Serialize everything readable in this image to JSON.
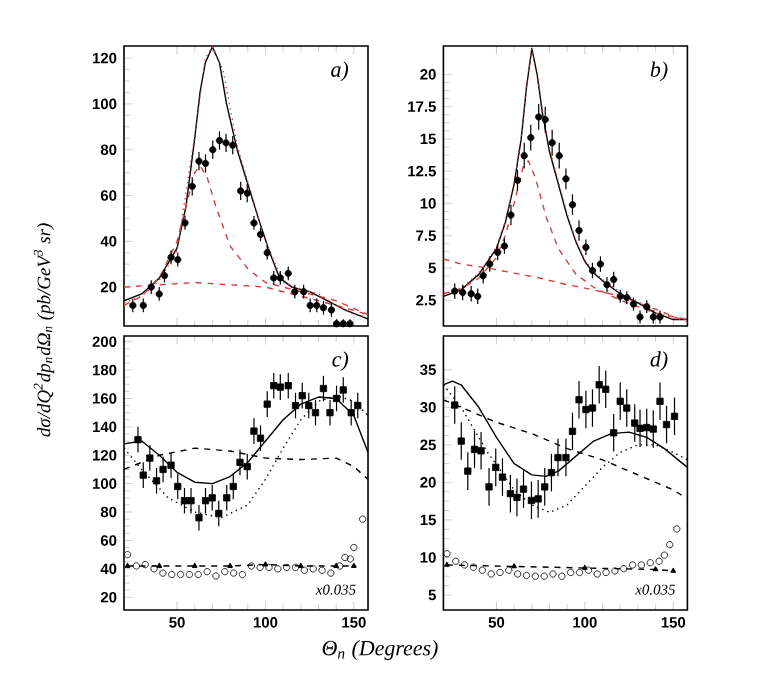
{
  "chart_data": [
    {
      "type": "scatter",
      "ylabel": "dσ/dQ$^{2}$dp$_{n}$dΩ$_{n}$ (pb/GeV$^{3}$ sr)",
      "xlim": [
        20,
        158
      ],
      "ylim": [
        3,
        125.3
      ],
      "xticks": [
        50,
        100,
        150
      ],
      "yticks": [
        20,
        40,
        60,
        80,
        100,
        120
      ],
      "tick_labels": "y",
      "annotations": [
        "a)"
      ],
      "series": [
        {
          "type": "line",
          "color": "#000000",
          "line_style": "solid",
          "x": [
            20,
            30,
            40,
            50,
            55,
            60,
            63,
            66,
            70,
            74,
            78,
            84,
            90,
            96,
            102,
            108,
            115,
            125,
            135,
            145,
            155,
            158
          ],
          "values": [
            14,
            17,
            24,
            37,
            55,
            85,
            105,
            118,
            125,
            118,
            100,
            80,
            65,
            50,
            36,
            24,
            20,
            18,
            14,
            10,
            7,
            6
          ]
        },
        {
          "type": "line",
          "color": "#d04040",
          "line_style": "dotted",
          "x": [
            20,
            30,
            40,
            50,
            60,
            66,
            70,
            76,
            84,
            90,
            100,
            110,
            120,
            130,
            140,
            150,
            158
          ],
          "values": [
            13,
            16,
            23,
            36,
            86,
            120,
            125,
            115,
            82,
            66,
            40,
            22,
            19,
            17,
            12,
            8,
            7
          ]
        },
        {
          "type": "line",
          "color": "#d04040",
          "line_style": "dashed",
          "x": [
            20,
            30,
            40,
            50,
            55,
            60,
            63,
            67,
            72,
            80,
            90,
            100,
            110,
            120,
            140,
            158
          ],
          "values": [
            12,
            16,
            24,
            40,
            55,
            70,
            73,
            68,
            55,
            38,
            28,
            22,
            20,
            18,
            14,
            8
          ]
        },
        {
          "type": "line",
          "color": "#d04040",
          "line_style": "dashed",
          "x": [
            20,
            40,
            60,
            80,
            100,
            120,
            140,
            158
          ],
          "values": [
            20,
            21,
            22,
            21,
            20,
            16,
            12,
            8
          ]
        },
        {
          "color": "#000000",
          "marker": "circle",
          "x": [
            25,
            30.9,
            35.4,
            39.9,
            42.9,
            46.6,
            50.4,
            54.5,
            58.6,
            62.4,
            66.1,
            70.2,
            74,
            77.7,
            81.5,
            86,
            89.7,
            93.5,
            97.2,
            101,
            104.7,
            108.4,
            112.9,
            116.6,
            121.6,
            125.3,
            129,
            132.8,
            137.3,
            140.2,
            144,
            147.8
          ],
          "values": [
            12,
            12,
            20,
            17,
            25,
            33,
            32,
            48,
            64,
            75,
            74,
            80,
            84,
            83,
            82,
            62,
            61,
            48,
            43,
            35,
            24,
            24,
            26,
            18,
            18,
            12,
            12,
            11,
            10,
            4,
            4,
            4
          ],
          "errors": [
            3,
            3,
            3,
            3,
            3,
            3,
            3,
            3,
            4,
            4,
            4,
            4,
            4,
            4,
            4,
            4,
            4,
            3,
            3,
            3,
            3,
            3,
            3,
            3,
            3,
            3,
            3,
            3,
            3,
            2,
            2,
            2
          ]
        }
      ]
    },
    {
      "type": "scatter",
      "xlim": [
        20,
        158
      ],
      "ylim": [
        0.5,
        22.2
      ],
      "xticks": [
        50,
        100,
        150
      ],
      "yticks": [
        2.5,
        5,
        7.5,
        10,
        12.5,
        15,
        17.5,
        20
      ],
      "tick_labels": "y",
      "annotations": [
        "b)"
      ],
      "series": [
        {
          "type": "line",
          "color": "#000000",
          "line_style": "solid",
          "x": [
            20,
            30,
            40,
            50,
            55,
            60,
            64,
            67,
            70,
            73,
            76,
            80,
            85,
            90,
            95,
            100,
            105,
            110,
            120,
            130,
            140,
            150,
            158
          ],
          "values": [
            2.8,
            3.3,
            4.5,
            6.5,
            8.5,
            11.5,
            15,
            19,
            22,
            20,
            17,
            14,
            11.5,
            9,
            7,
            5.5,
            4.6,
            4,
            3,
            2.3,
            1.5,
            1,
            1
          ]
        },
        {
          "type": "line",
          "color": "#d04040",
          "line_style": "dotted",
          "x": [
            20,
            30,
            40,
            50,
            55,
            60,
            64,
            67,
            70,
            73,
            76,
            80,
            85,
            90,
            95,
            100,
            105,
            110,
            120,
            130,
            140,
            150,
            158
          ],
          "values": [
            2.9,
            3.4,
            4.6,
            6.6,
            8.6,
            11.6,
            15.2,
            19.2,
            22,
            20.2,
            17.2,
            14.2,
            11.7,
            9.2,
            7.1,
            5.6,
            4.7,
            4.1,
            3.1,
            2.4,
            1.6,
            1.1,
            1
          ]
        },
        {
          "type": "line",
          "color": "#d04040",
          "line_style": "dashed",
          "x": [
            20,
            30,
            40,
            50,
            55,
            60,
            65,
            68,
            72,
            78,
            85,
            95,
            105,
            120,
            140,
            158
          ],
          "values": [
            3,
            3.4,
            4.2,
            5.8,
            7.5,
            10,
            12.8,
            13.3,
            12,
            9,
            6.5,
            4.5,
            3.5,
            2.5,
            1.5,
            1
          ]
        },
        {
          "type": "line",
          "color": "#d04040",
          "line_style": "dashed",
          "x": [
            20,
            30,
            45,
            60,
            75,
            90,
            105,
            120,
            140,
            158
          ],
          "values": [
            5.7,
            5.3,
            5,
            4.6,
            4.2,
            3.7,
            3.3,
            2.8,
            1.8,
            0.8
          ]
        },
        {
          "color": "#000000",
          "marker": "circle",
          "x": [
            26.4,
            30.9,
            35.7,
            39.4,
            42.5,
            46.2,
            50.7,
            54.5,
            58.2,
            61.9,
            65.7,
            69.4,
            73.9,
            77.6,
            81.5,
            85.5,
            89.3,
            93,
            96.7,
            100.6,
            104.3,
            108.8,
            112.5,
            116.3,
            120,
            123.7,
            127.5,
            131.2,
            135,
            138.7,
            142.5
          ],
          "values": [
            3.2,
            3.1,
            3,
            2.8,
            4.4,
            5.3,
            6.2,
            6.7,
            9.1,
            11.8,
            13.7,
            15.1,
            16.7,
            16.5,
            14.7,
            13.7,
            11.9,
            9.9,
            7.9,
            6.6,
            4.8,
            5.3,
            3.7,
            4.1,
            2.8,
            2.7,
            2.2,
            1.2,
            2,
            1.2,
            1.2
          ],
          "errors": [
            0.6,
            0.6,
            0.6,
            0.6,
            0.6,
            0.6,
            0.6,
            0.6,
            0.8,
            0.8,
            1,
            1,
            1,
            1,
            1,
            1,
            0.8,
            0.8,
            0.8,
            0.6,
            0.6,
            0.6,
            0.6,
            0.6,
            0.5,
            0.5,
            0.5,
            0.5,
            0.5,
            0.5,
            0.5
          ]
        }
      ]
    },
    {
      "type": "scatter",
      "xlabel": "Θ$_{n}$ (Degrees)",
      "xlim": [
        20,
        158
      ],
      "ylim": [
        11,
        204
      ],
      "xticks": [
        50,
        100,
        150
      ],
      "yticks": [
        20,
        40,
        60,
        80,
        100,
        120,
        140,
        160,
        180,
        200
      ],
      "annotations": [
        "c)",
        "x0.035"
      ],
      "series": [
        {
          "type": "line",
          "color": "#000000",
          "line_style": "solid",
          "x": [
            20,
            30,
            40,
            50,
            60,
            70,
            80,
            90,
            100,
            110,
            120,
            130,
            140,
            150,
            158
          ],
          "values": [
            128,
            130,
            120,
            108,
            101,
            100,
            105,
            115,
            130,
            145,
            156,
            161,
            160,
            148,
            122
          ]
        },
        {
          "type": "line",
          "color": "#000000",
          "line_style": "dashed",
          "x": [
            20,
            40,
            60,
            80,
            100,
            120,
            140,
            150,
            158
          ],
          "values": [
            110,
            120,
            125,
            123,
            118,
            117,
            118,
            112,
            103
          ]
        },
        {
          "type": "line",
          "color": "#000000",
          "line_style": "dotted",
          "x": [
            20,
            30,
            45,
            60,
            75,
            90,
            100,
            110,
            120,
            130,
            140,
            150,
            158
          ],
          "values": [
            125,
            110,
            90,
            80,
            76,
            85,
            103,
            125,
            145,
            158,
            162,
            158,
            148
          ]
        },
        {
          "type": "line",
          "color": "#000000",
          "line_style": "dashed",
          "marker": "triangle",
          "x": [
            22,
            40,
            60,
            80,
            100,
            120,
            140,
            150
          ],
          "values": [
            42,
            42,
            42,
            42,
            43,
            42,
            42,
            42
          ]
        },
        {
          "color": "#000000",
          "marker": "circle",
          "x": [
            22,
            27,
            32,
            37,
            42,
            47,
            52,
            57,
            62,
            67,
            72,
            77,
            82,
            87,
            92,
            97,
            102,
            107,
            112,
            117,
            122,
            127,
            132,
            137,
            142,
            145,
            148,
            150,
            155
          ],
          "values": [
            50,
            42,
            43,
            40,
            37,
            36,
            36,
            36,
            36,
            38,
            35,
            38,
            37,
            36,
            42,
            41,
            41,
            40,
            41,
            41,
            39,
            40,
            39,
            37,
            42,
            48,
            47,
            55,
            75
          ]
        },
        {
          "color": "#000000",
          "marker": "square",
          "x": [
            27.9,
            30.9,
            34.6,
            38.4,
            42.1,
            46.6,
            50.4,
            54.2,
            57.9,
            62.4,
            66.1,
            69.9,
            73.6,
            78.1,
            81.8,
            85.6,
            89.7,
            93.5,
            97.2,
            101,
            104.7,
            108.4,
            112.9,
            117,
            120.8,
            124.5,
            128.3,
            132.8,
            136.5,
            140.2,
            144,
            148.5,
            152.2
          ],
          "values": [
            131,
            106,
            118,
            102,
            110,
            113,
            98,
            88,
            88,
            76,
            88,
            90,
            79,
            90,
            98,
            115,
            112,
            137,
            132,
            156,
            169,
            168,
            169,
            155,
            162,
            155,
            150,
            167,
            150,
            160,
            166,
            150,
            155
          ],
          "errors": [
            9,
            9,
            9,
            9,
            9,
            9,
            9,
            9,
            9,
            9,
            9,
            9,
            9,
            9,
            9,
            9,
            9,
            9,
            9,
            9,
            9,
            9,
            9,
            9,
            9,
            9,
            9,
            9,
            9,
            9,
            9,
            9,
            9
          ]
        }
      ]
    },
    {
      "type": "scatter",
      "xlim": [
        20,
        158
      ],
      "ylim": [
        3,
        39.5
      ],
      "xticks": [
        50,
        100,
        150
      ],
      "yticks": [
        5,
        10,
        15,
        20,
        25,
        30,
        35
      ],
      "annotations": [
        "d)",
        "x0.035"
      ],
      "series": [
        {
          "type": "line",
          "color": "#000000",
          "line_style": "solid",
          "x": [
            20,
            25,
            30,
            40,
            50,
            60,
            70,
            78,
            85,
            95,
            105,
            115,
            125,
            135,
            145,
            158
          ],
          "values": [
            33,
            33.5,
            33,
            30,
            26,
            22.5,
            21,
            20.8,
            21.5,
            23.5,
            25.5,
            26.5,
            26.7,
            26,
            24.5,
            22
          ]
        },
        {
          "type": "line",
          "color": "#000000",
          "line_style": "dashed",
          "x": [
            20,
            30,
            50,
            70,
            90,
            110,
            130,
            150,
            158
          ],
          "values": [
            31,
            30,
            28,
            26.5,
            24.5,
            23,
            21,
            19,
            17.8
          ]
        },
        {
          "type": "line",
          "color": "#000000",
          "line_style": "dotted",
          "x": [
            20,
            30,
            45,
            60,
            70,
            80,
            90,
            100,
            110,
            120,
            130,
            140,
            150,
            158
          ],
          "values": [
            33,
            30,
            24,
            19,
            17,
            16,
            17,
            19.5,
            22,
            24,
            25,
            25,
            24,
            23
          ]
        },
        {
          "type": "line",
          "color": "#000000",
          "line_style": "dashed",
          "marker": "triangle",
          "x": [
            22,
            60,
            100,
            140,
            150
          ],
          "values": [
            9,
            8.8,
            8.6,
            8.4,
            8.2
          ]
        },
        {
          "color": "#000000",
          "marker": "circle",
          "x": [
            22,
            27,
            32,
            37,
            42,
            47,
            52,
            57,
            62,
            67,
            72,
            77,
            82,
            87,
            92,
            97,
            102,
            107,
            112,
            117,
            122,
            127,
            132,
            137,
            142,
            145,
            148,
            152
          ],
          "values": [
            10.5,
            9.5,
            9,
            8.7,
            8.3,
            7.8,
            8,
            8.3,
            7.8,
            7.6,
            7.5,
            7.5,
            7.8,
            7.5,
            8,
            8,
            8.3,
            7.8,
            8,
            8.2,
            8.5,
            9,
            9,
            9.3,
            9.5,
            10.3,
            11.7,
            13.8
          ]
        },
        {
          "color": "#000000",
          "marker": "square",
          "x": [
            26.4,
            30.1,
            33.8,
            37.6,
            41.3,
            45.8,
            49.6,
            53.4,
            57.9,
            61.6,
            65.3,
            69.8,
            73.6,
            77.3,
            81.1,
            84.8,
            89.3,
            93,
            96.7,
            100.6,
            104.3,
            108.1,
            111.8,
            116.3,
            120,
            123.7,
            128.2,
            131.2,
            135,
            138.7,
            142.5,
            146.2,
            150.7
          ],
          "values": [
            30.3,
            25.5,
            21.5,
            24.4,
            24.2,
            19.4,
            22,
            20.7,
            18.5,
            18,
            19.1,
            17.6,
            17.8,
            19.4,
            21.3,
            23.3,
            23.3,
            26.8,
            31,
            29.7,
            29.9,
            33,
            32.4,
            26.6,
            30.8,
            29.9,
            27.9,
            27.2,
            27.3,
            27.1,
            30.8,
            27.7,
            28.8
          ],
          "errors": [
            2.5,
            2.5,
            2.5,
            2.5,
            2.5,
            2.5,
            2.5,
            2.5,
            2.5,
            2.5,
            2.5,
            2.5,
            2.5,
            2.5,
            2.5,
            2.5,
            2.5,
            2.5,
            2.5,
            2.5,
            2.5,
            2.5,
            2.5,
            2.5,
            2.5,
            2.5,
            2.5,
            2.5,
            2.5,
            2.5,
            2.5,
            2.5,
            2.5
          ]
        }
      ]
    }
  ]
}
